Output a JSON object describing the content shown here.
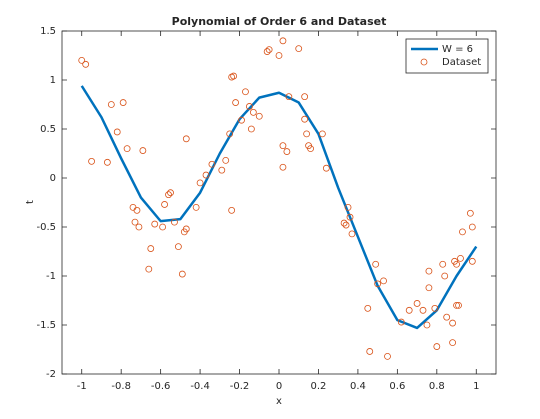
{
  "chart_data": {
    "type": "line",
    "title": "Polynomial of Order 6 and Dataset",
    "x_label": "x",
    "y_label": "t",
    "xlim": [
      -1.1,
      1.1
    ],
    "ylim": [
      -2,
      1.5
    ],
    "xticks": [
      -1,
      -0.8,
      -0.6,
      -0.4,
      -0.2,
      0,
      0.2,
      0.4,
      0.6,
      0.8,
      1
    ],
    "yticks": [
      -2,
      -1.5,
      -1,
      -0.5,
      0,
      0.5,
      1,
      1.5
    ],
    "grid": false,
    "legend": "northeast",
    "series": [
      {
        "name": "W = 6",
        "type": "line",
        "color": "#0072bd",
        "x": [
          -1,
          -0.9,
          -0.8,
          -0.7,
          -0.6,
          -0.5,
          -0.4,
          -0.3,
          -0.2,
          -0.1,
          0,
          0.1,
          0.2,
          0.3,
          0.4,
          0.5,
          0.6,
          0.7,
          0.8,
          0.9,
          1
        ],
        "values": [
          0.94,
          0.62,
          0.2,
          -0.2,
          -0.44,
          -0.42,
          -0.15,
          0.25,
          0.6,
          0.82,
          0.87,
          0.77,
          0.45,
          -0.1,
          -0.6,
          -1.1,
          -1.45,
          -1.53,
          -1.35,
          -1.0,
          -0.7
        ]
      },
      {
        "name": "Dataset",
        "type": "scatter",
        "color": "#d95319",
        "x": [
          -1.0,
          -0.98,
          -0.95,
          -0.87,
          -0.85,
          -0.82,
          -0.79,
          -0.77,
          -0.74,
          -0.73,
          -0.71,
          -0.72,
          -0.69,
          -0.66,
          -0.65,
          -0.63,
          -0.59,
          -0.58,
          -0.56,
          -0.55,
          -0.53,
          -0.51,
          -0.49,
          -0.48,
          -0.47,
          -0.47,
          -0.42,
          -0.4,
          -0.37,
          -0.34,
          -0.29,
          -0.27,
          -0.25,
          -0.24,
          -0.23,
          -0.24,
          -0.22,
          -0.19,
          -0.17,
          -0.15,
          -0.14,
          -0.13,
          -0.1,
          -0.06,
          -0.05,
          0.0,
          0.02,
          0.02,
          0.02,
          0.04,
          0.05,
          0.1,
          0.13,
          0.13,
          0.14,
          0.15,
          0.16,
          0.22,
          0.24,
          0.33,
          0.34,
          0.35,
          0.36,
          0.37,
          0.45,
          0.46,
          0.49,
          0.5,
          0.53,
          0.55,
          0.62,
          0.66,
          0.7,
          0.73,
          0.75,
          0.76,
          0.76,
          0.79,
          0.8,
          0.83,
          0.84,
          0.85,
          0.88,
          0.88,
          0.89,
          0.9,
          0.9,
          0.91,
          0.92,
          0.93,
          0.97,
          0.98,
          0.98
        ],
        "values": [
          1.2,
          1.16,
          0.17,
          0.16,
          0.75,
          0.47,
          0.77,
          0.3,
          -0.3,
          -0.45,
          -0.5,
          -0.33,
          0.28,
          -0.93,
          -0.72,
          -0.47,
          -0.5,
          -0.27,
          -0.17,
          -0.15,
          -0.45,
          -0.7,
          -0.98,
          -0.55,
          -0.52,
          0.4,
          -0.3,
          -0.05,
          0.03,
          0.14,
          0.08,
          0.18,
          0.45,
          1.03,
          1.04,
          -0.33,
          0.77,
          0.59,
          0.88,
          0.73,
          0.5,
          0.67,
          0.63,
          1.29,
          1.31,
          1.25,
          1.4,
          0.33,
          0.11,
          0.27,
          0.83,
          1.32,
          0.83,
          0.6,
          0.45,
          0.33,
          0.3,
          0.45,
          0.1,
          -0.46,
          -0.48,
          -0.3,
          -0.4,
          -0.57,
          -1.33,
          -1.77,
          -0.88,
          -1.08,
          -1.05,
          -1.82,
          -1.47,
          -1.35,
          -1.28,
          -1.35,
          -1.5,
          -0.95,
          -1.12,
          -1.33,
          -1.72,
          -0.88,
          -1.0,
          -1.42,
          -1.68,
          -1.48,
          -0.85,
          -0.88,
          -1.3,
          -1.3,
          -0.82,
          -0.55,
          -0.36,
          -0.5,
          -0.85
        ]
      }
    ]
  }
}
